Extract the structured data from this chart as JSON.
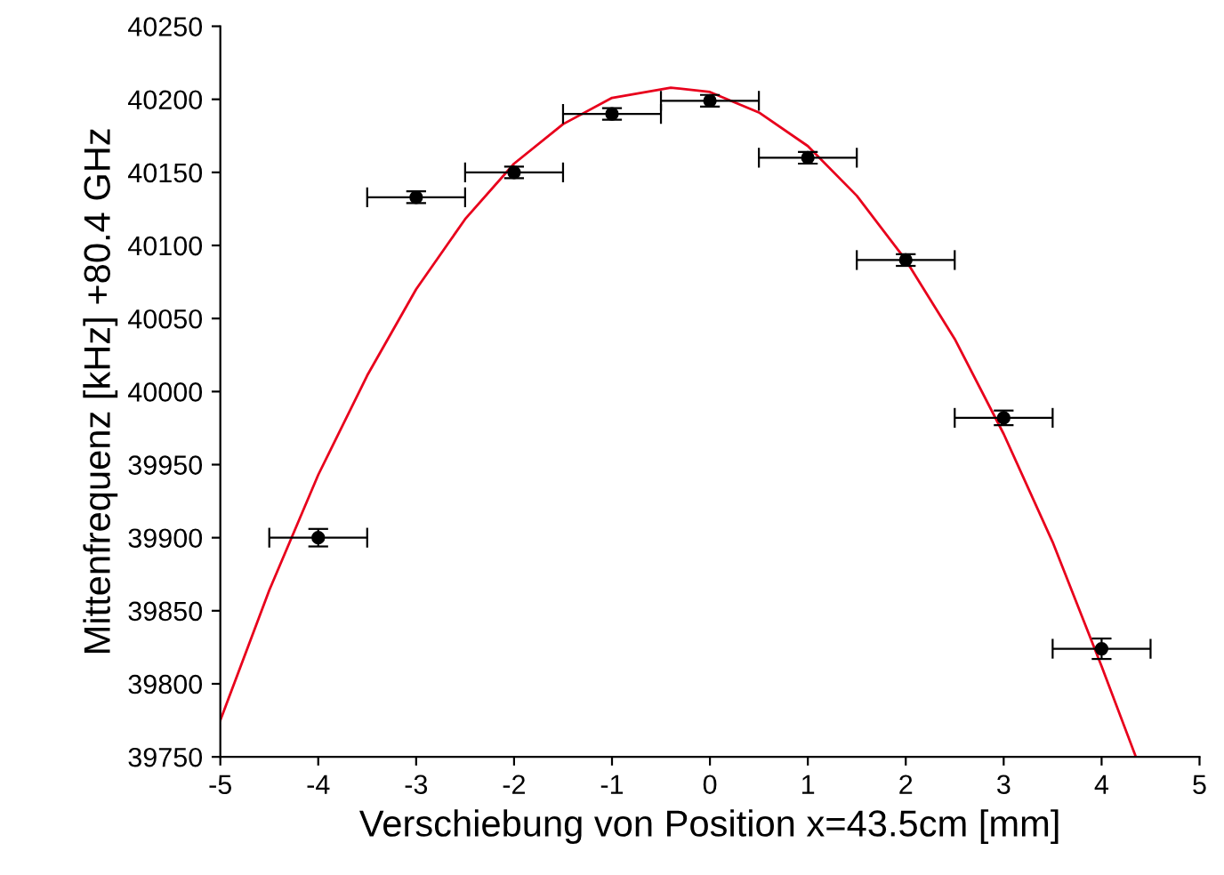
{
  "chart_data": {
    "type": "scatter",
    "xlabel": "Verschiebung von Position x=43.5cm [mm]",
    "ylabel": "Mittenfrequenz [kHz] +80.4 GHz",
    "xlim": [
      -5,
      5
    ],
    "xticks": [
      -5,
      -4,
      -3,
      -2,
      -1,
      0,
      1,
      2,
      3,
      4,
      5
    ],
    "ylim": [
      39750,
      40250
    ],
    "yticks": [
      39750,
      39800,
      39850,
      39900,
      39950,
      40000,
      40050,
      40100,
      40150,
      40200,
      40250
    ],
    "grid": false,
    "legend": false,
    "series": [
      {
        "color": "#000000",
        "marker": "circle",
        "x": [
          -4,
          -3,
          -2,
          -1,
          0,
          1,
          2,
          3,
          4
        ],
        "values": [
          39900,
          40133,
          40150,
          40190,
          40199,
          40160,
          40090,
          39982,
          39824
        ],
        "errors": [
          6,
          4,
          4,
          4,
          4,
          4,
          4,
          5,
          7
        ],
        "xerrors": [
          0.5,
          0.5,
          0.5,
          0.5,
          0.5,
          0.5,
          0.5,
          0.5,
          0.5
        ]
      },
      {
        "type": "line",
        "color": "#e8001c",
        "line_style": "solid",
        "marker": "none",
        "x": [
          -5,
          -4.5,
          -4,
          -3.5,
          -3,
          -2.5,
          -2,
          -1.5,
          -1,
          -0.4,
          0,
          0.5,
          1,
          1.5,
          2,
          2.5,
          3,
          3.5,
          4,
          4.35
        ],
        "values": [
          39775,
          39864,
          39943,
          40011,
          40070,
          40118,
          40156,
          40183,
          40201,
          40208,
          40205,
          40191,
          40168,
          40134,
          40090,
          40036,
          39971,
          39897,
          39812,
          39750
        ]
      }
    ]
  }
}
